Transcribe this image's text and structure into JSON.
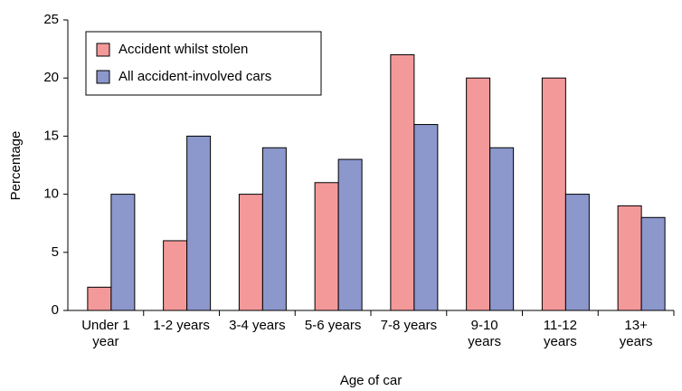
{
  "chart_data": {
    "type": "bar",
    "xlabel": "Age of car",
    "ylabel": "Percentage",
    "categories": [
      "Under 1 year",
      "1-2 years",
      "3-4 years",
      "5-6 years",
      "7-8 years",
      "9-10 years",
      "11-12 years",
      "13+ years"
    ],
    "series": [
      {
        "name": "Accident whilst stolen",
        "color": "#f4999a",
        "values": [
          2,
          6,
          10,
          11,
          22,
          20,
          20,
          9
        ]
      },
      {
        "name": "All accident-involved cars",
        "color": "#8c97cc",
        "values": [
          10,
          15,
          14,
          13,
          16,
          14,
          10,
          8
        ]
      }
    ],
    "ylim": [
      0,
      25
    ],
    "yticks": [
      0,
      5,
      10,
      15,
      20,
      25
    ],
    "grid": false,
    "legend": "upper left"
  }
}
